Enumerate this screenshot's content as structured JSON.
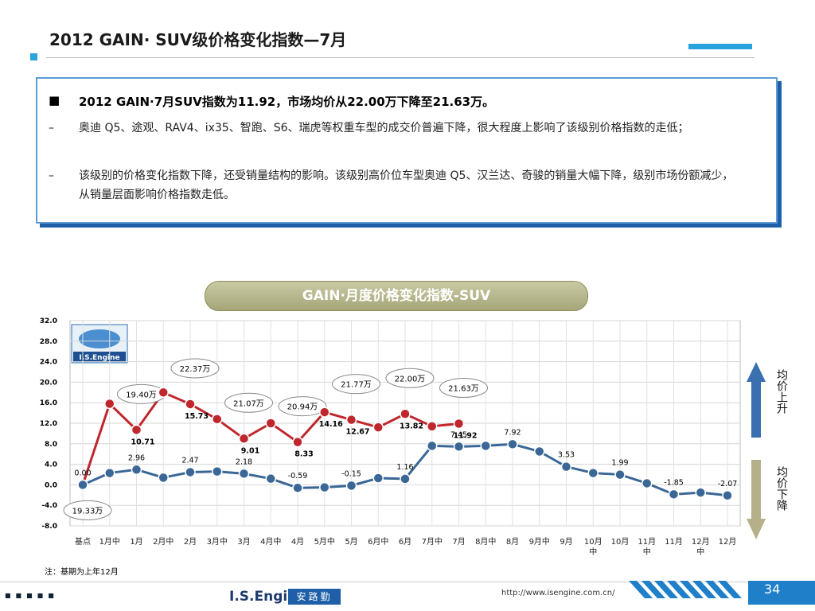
{
  "header": {
    "title": "2012 GAIN· SUV级价格变化指数—7月"
  },
  "summary": {
    "headline": "2012 GAIN·7月SUV指数为11.92，市场均价从22.00万下降至21.63万。",
    "points": [
      {
        "marker": "–",
        "text": "奥迪 Q5、途观、RAV4、ix35、智跑、S6、瑞虎等权重车型的成交价普遍下降，很大程度上影响了该级别价格指数的走低；"
      },
      {
        "marker": "–",
        "text": "该级别的价格变化指数下降，还受销量结构的影响。该级别高价位车型奥迪 Q5、汉兰达、奇骏的销量大幅下降，级别市场份额减少，从销量层面影响价格指数走低。"
      }
    ]
  },
  "chart_data": {
    "type": "line",
    "title": "GAIN·月度价格变化指数-SUV",
    "logo": "I.S.Engine",
    "categories": [
      "基点",
      "1月中",
      "1月",
      "2月中",
      "2月",
      "3月中",
      "3月",
      "4月中",
      "4月",
      "5月中",
      "5月",
      "6月中",
      "6月",
      "7月中",
      "7月",
      "8月中",
      "8月",
      "9月中",
      "9月",
      "10月中",
      "10月",
      "11月中",
      "11月",
      "12月中",
      "12月"
    ],
    "series": [
      {
        "color": "#c0272d",
        "values": [
          0,
          15.8,
          10.71,
          18.0,
          15.73,
          12.8,
          9.01,
          12.0,
          8.33,
          14.16,
          12.67,
          11.2,
          13.82,
          11.4,
          11.92,
          null,
          null,
          null,
          null,
          null,
          null,
          null,
          null,
          null,
          null
        ],
        "value_labels": [
          null,
          null,
          "10.71",
          null,
          "15.73",
          null,
          "9.01",
          null,
          "8.33",
          "14.16",
          "12.67",
          null,
          "13.82",
          null,
          "11.92",
          null,
          null,
          null,
          null,
          null,
          null,
          null,
          null,
          null,
          null
        ],
        "price_labels": [
          "19.33万",
          null,
          "19.40万",
          null,
          "22.37万",
          null,
          "21.07万",
          null,
          "20.94万",
          null,
          "21.77万",
          null,
          "22.00万",
          null,
          "21.63万",
          null,
          null,
          null,
          null,
          null,
          null,
          null,
          null,
          null,
          null
        ]
      },
      {
        "color": "#3a6795",
        "values": [
          0,
          2.3,
          2.96,
          1.4,
          2.47,
          2.6,
          2.18,
          1.2,
          -0.59,
          -0.5,
          -0.15,
          1.3,
          1.16,
          7.6,
          7.45,
          7.6,
          7.92,
          6.5,
          3.53,
          2.3,
          1.99,
          0.3,
          -1.85,
          -1.5,
          -2.07
        ],
        "value_labels": [
          "0.00",
          null,
          "2.96",
          null,
          "2.47",
          null,
          "2.18",
          null,
          "-0.59",
          null,
          "-0.15",
          null,
          "1.16",
          null,
          "7.45",
          null,
          "7.92",
          null,
          "3.53",
          null,
          "1.99",
          null,
          "-1.85",
          null,
          "-2.07"
        ]
      }
    ],
    "ylim": [
      -8,
      32
    ],
    "yticks": [
      {
        "value": -8,
        "label": "-8.0"
      },
      {
        "value": -4,
        "label": "-4.0"
      },
      {
        "value": 0,
        "label": "0.0"
      },
      {
        "value": 4,
        "label": "4.0"
      },
      {
        "value": 8,
        "label": "8.0"
      },
      {
        "value": 12,
        "label": "12.0"
      },
      {
        "value": 16,
        "label": "16.0"
      },
      {
        "value": 20,
        "label": "20.0"
      },
      {
        "value": 24,
        "label": "24.0"
      },
      {
        "value": 28,
        "label": "28.0"
      },
      {
        "value": 32,
        "label": "32.0"
      }
    ],
    "grid": true,
    "up_label": "均价上升",
    "down_label": "均价下降",
    "note": "注：基期为上年12月"
  },
  "footer": {
    "brand": "I.S.Engine",
    "brand_cn": "安路勤",
    "url": "http://www.isengine.com.cn/",
    "page": "34"
  }
}
